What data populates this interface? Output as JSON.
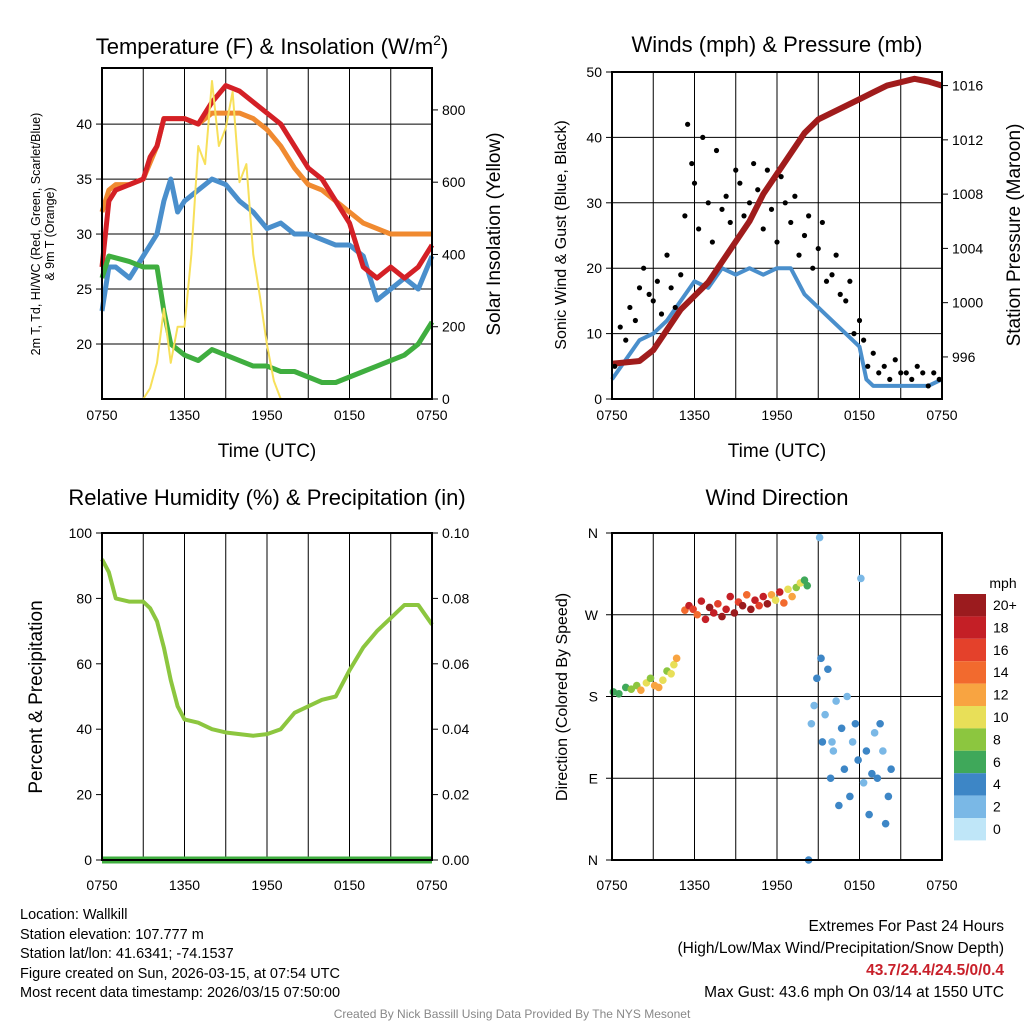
{
  "chart_data": [
    {
      "type": "line",
      "title": "Temperature (F) & Insolation (W/m2)",
      "title_main": "Temperature (F) & Insolation (W/m",
      "title_sup": "2",
      "title_end": ")",
      "xlabel": "Time (UTC)",
      "ylabel_line1": "2m T, Td, HI/WC (Red, Green, Scarlet/Blue)",
      "ylabel_line2": "& 9m T (Orange)",
      "ylabel_right": "Solar Insolation (Yellow)",
      "xticks": [
        "0750",
        "1350",
        "1950",
        "0150",
        "0750"
      ],
      "yticks": [
        20,
        25,
        30,
        35,
        40
      ],
      "ylim": [
        15,
        45.1
      ],
      "yticks_right": [
        0,
        200,
        400,
        600,
        800
      ],
      "ylim_right": [
        0,
        916
      ],
      "series": [
        {
          "name": "9m T",
          "color": "#f08a30",
          "axis": "left",
          "x": [
            0,
            0.5,
            1,
            2,
            3,
            4,
            4.5,
            6,
            7,
            8,
            9,
            10,
            11,
            12,
            13,
            14,
            15,
            16,
            17,
            18,
            19,
            20,
            21,
            22,
            23,
            24
          ],
          "y": [
            32,
            34,
            34.5,
            34.5,
            35,
            38,
            40.5,
            40.5,
            40,
            41,
            41,
            41,
            40.5,
            39.5,
            38,
            36,
            34.5,
            34,
            33,
            32,
            31,
            30.5,
            30,
            30,
            30,
            30
          ]
        },
        {
          "name": "HI/WC",
          "color": "#4a8fcc",
          "axis": "left",
          "x": [
            0,
            0.5,
            1,
            2,
            3,
            4,
            4.5,
            5,
            5.5,
            6,
            7,
            8,
            9,
            10,
            11,
            12,
            13,
            14,
            15,
            16,
            17,
            18,
            19,
            20,
            21,
            22,
            23,
            24
          ],
          "y": [
            23,
            27,
            27,
            26,
            28,
            30,
            33,
            35,
            32,
            33,
            34,
            35,
            34.5,
            33,
            32,
            30.5,
            31,
            30,
            30,
            29.5,
            29,
            29,
            28,
            24,
            25,
            26,
            25,
            28
          ]
        },
        {
          "name": "2m T",
          "color": "#d42026",
          "axis": "left",
          "x": [
            0,
            0.5,
            1,
            2,
            3,
            3.5,
            4,
            4.5,
            6,
            7,
            8,
            9,
            10,
            11,
            12,
            13,
            14,
            15,
            16,
            17,
            18,
            19,
            20,
            21,
            22,
            23,
            24
          ],
          "y": [
            27,
            33,
            34,
            34.5,
            35,
            37,
            38,
            40.5,
            40.5,
            40,
            42,
            43.5,
            43,
            42,
            41,
            40,
            38,
            36,
            35,
            33,
            31,
            27,
            26,
            27,
            26,
            27,
            29
          ]
        },
        {
          "name": "Td",
          "color": "#3fae3f",
          "axis": "left",
          "x": [
            0,
            0.5,
            2,
            3,
            4,
            4.5,
            5,
            6,
            7,
            8,
            9,
            10,
            11,
            12,
            13,
            14,
            15,
            16,
            17,
            18,
            19,
            20,
            21,
            22,
            23,
            24
          ],
          "y": [
            26,
            28,
            27.5,
            27,
            27,
            23,
            20,
            19,
            18.5,
            19.5,
            19,
            18.5,
            18,
            18,
            17.5,
            17.5,
            17,
            16.5,
            16.5,
            17,
            17.5,
            18,
            18.5,
            19,
            20,
            22
          ]
        },
        {
          "name": "Insolation",
          "color": "#f7e05a",
          "axis": "right",
          "thin": true,
          "x": [
            0,
            3,
            3.5,
            4,
            4.5,
            5,
            5.5,
            6,
            6.5,
            7,
            7.5,
            8,
            8.5,
            9,
            9.5,
            10,
            10.5,
            11,
            11.5,
            12,
            12.5,
            13,
            24
          ],
          "y": [
            0,
            0,
            30,
            100,
            250,
            100,
            200,
            200,
            400,
            700,
            650,
            880,
            700,
            750,
            850,
            600,
            650,
            400,
            280,
            150,
            50,
            0,
            0
          ]
        }
      ]
    },
    {
      "type": "line",
      "title": "Winds (mph) & Pressure (mb)",
      "xlabel": "Time (UTC)",
      "ylabel": "Sonic Wind & Gust (Blue, Black)",
      "ylabel_right": "Station Pressure (Maroon)",
      "xticks": [
        "0750",
        "1350",
        "1950",
        "0150",
        "0750"
      ],
      "yticks": [
        0,
        10,
        20,
        30,
        40,
        50
      ],
      "ylim": [
        0,
        50
      ],
      "yticks_right": [
        996,
        1000,
        1004,
        1008,
        1012,
        1016
      ],
      "ylim_right": [
        992.9,
        1017
      ],
      "series": [
        {
          "name": "Sonic Wind",
          "color": "#4a8fcc",
          "axis": "left",
          "x": [
            0,
            1,
            2,
            3,
            4,
            5,
            6,
            7,
            8,
            9,
            10,
            11,
            12,
            13,
            14,
            15,
            16,
            17,
            18,
            18.5,
            19,
            20,
            21,
            22,
            23,
            24
          ],
          "y": [
            3,
            6,
            9,
            10,
            12,
            15,
            18,
            17,
            20,
            19,
            20,
            19,
            20,
            20,
            16,
            14,
            12,
            10,
            8,
            3,
            2,
            2,
            2,
            2,
            2,
            3
          ]
        },
        {
          "name": "Pressure",
          "color": "#a01c1c",
          "axis": "right",
          "x": [
            0,
            2,
            3,
            4,
            5,
            6,
            7,
            8,
            9,
            10,
            11,
            12,
            13,
            14,
            15,
            16,
            17,
            18,
            19,
            20,
            22,
            23,
            24
          ],
          "y": [
            995.5,
            995.7,
            996.5,
            998,
            999.5,
            1000.5,
            1001.5,
            1003,
            1004.5,
            1006,
            1008,
            1009.5,
            1011,
            1012.5,
            1013.5,
            1014,
            1014.5,
            1015,
            1015.5,
            1016,
            1016.5,
            1016.3,
            1016
          ]
        },
        {
          "name": "Gust",
          "color": "#000000",
          "axis": "left",
          "scatter": true,
          "x": [
            0.2,
            0.6,
            1,
            1.3,
            1.7,
            2,
            2.3,
            2.7,
            3,
            3.3,
            3.6,
            4,
            4.3,
            4.6,
            5,
            5.3,
            5.5,
            5.8,
            6,
            6.3,
            6.6,
            7,
            7.3,
            7.6,
            8,
            8.3,
            8.6,
            9,
            9.3,
            9.6,
            10,
            10.3,
            10.6,
            11,
            11.3,
            11.6,
            12,
            12.3,
            12.6,
            13,
            13.3,
            13.6,
            14,
            14.3,
            14.6,
            15,
            15.3,
            15.6,
            16,
            16.3,
            16.6,
            17,
            17.3,
            17.6,
            18,
            18.3,
            18.6,
            19,
            19.4,
            19.8,
            20.2,
            20.6,
            21,
            21.4,
            21.8,
            22.2,
            22.6,
            23,
            23.4,
            23.8
          ],
          "y": [
            5,
            11,
            9,
            14,
            12,
            17,
            20,
            16,
            15,
            18,
            13,
            22,
            17,
            14,
            19,
            28,
            42,
            36,
            33,
            26,
            40,
            30,
            24,
            38,
            29,
            31,
            27,
            35,
            33,
            28,
            30,
            36,
            32,
            26,
            35,
            29,
            24,
            34,
            30,
            27,
            31,
            22,
            25,
            28,
            20,
            23,
            27,
            18,
            19,
            22,
            16,
            15,
            18,
            10,
            12,
            9,
            5,
            7,
            4,
            5,
            3,
            6,
            4,
            4,
            3,
            5,
            4,
            2,
            4,
            3
          ]
        }
      ]
    },
    {
      "type": "line",
      "title": "Relative Humidity (%) & Precipitation (in)",
      "ylabel": "Percent & Precipitation",
      "xticks": [
        "0750",
        "1350",
        "1950",
        "0150",
        "0750"
      ],
      "yticks": [
        0,
        20,
        40,
        60,
        80,
        100
      ],
      "ylim": [
        0,
        100
      ],
      "yticks_right": [
        "0.00",
        "0.02",
        "0.04",
        "0.06",
        "0.08",
        "0.10"
      ],
      "ylim_right": [
        0,
        0.1
      ],
      "series": [
        {
          "name": "RH",
          "color": "#8cc63f",
          "axis": "left",
          "x": [
            0,
            0.5,
            1,
            2,
            3,
            3.5,
            4,
            4.5,
            5,
            5.5,
            6,
            7,
            8,
            9,
            10,
            11,
            12,
            13,
            14,
            15,
            16,
            17,
            18,
            19,
            20,
            21,
            22,
            23,
            24
          ],
          "y": [
            92,
            88,
            80,
            79,
            79,
            77,
            73,
            65,
            55,
            47,
            43,
            42,
            40,
            39,
            38.5,
            38,
            38.5,
            40,
            45,
            47,
            49,
            50,
            58,
            65,
            70,
            74,
            78,
            78,
            72
          ]
        },
        {
          "name": "Precipitation",
          "color": "#3fae3f",
          "axis": "right",
          "x": [
            0,
            24
          ],
          "y": [
            0,
            0
          ]
        }
      ]
    },
    {
      "type": "scatter",
      "title": "Wind Direction",
      "ylabel": "Direction (Colored By Speed)",
      "xticks": [
        "0750",
        "1350",
        "1950",
        "0150",
        "0750"
      ],
      "yticks": [
        "N",
        "E",
        "S",
        "W",
        "N"
      ],
      "ylim": [
        0,
        360
      ],
      "colorbar": {
        "title": "mph",
        "labels": [
          "20+",
          "18",
          "16",
          "14",
          "12",
          "10",
          "8",
          "6",
          "4",
          "2",
          "0"
        ],
        "colors": [
          "#9b1b1e",
          "#c41f26",
          "#e4412b",
          "#f26a2e",
          "#f8a441",
          "#e8df58",
          "#8cc63f",
          "#3fa85a",
          "#3d86c6",
          "#7ab8e6",
          "#bfe6f8"
        ]
      },
      "points": [
        [
          0.1,
          185,
          6
        ],
        [
          0.5,
          183,
          5
        ],
        [
          1,
          190,
          6
        ],
        [
          1.4,
          188,
          7
        ],
        [
          1.8,
          192,
          8
        ],
        [
          2.1,
          187,
          12
        ],
        [
          2.5,
          195,
          10
        ],
        [
          2.8,
          200,
          8
        ],
        [
          3.1,
          192,
          11
        ],
        [
          3.4,
          190,
          12
        ],
        [
          3.7,
          198,
          9
        ],
        [
          4,
          208,
          7
        ],
        [
          4.3,
          205,
          10
        ],
        [
          4.5,
          215,
          9
        ],
        [
          4.7,
          222,
          12
        ],
        [
          5.3,
          275,
          13
        ],
        [
          5.6,
          280,
          18
        ],
        [
          5.9,
          276,
          16
        ],
        [
          6.2,
          270,
          14
        ],
        [
          6.5,
          285,
          17
        ],
        [
          6.8,
          265,
          18
        ],
        [
          7.1,
          278,
          20
        ],
        [
          7.4,
          272,
          18
        ],
        [
          7.7,
          282,
          16
        ],
        [
          8,
          268,
          20
        ],
        [
          8.3,
          276,
          18
        ],
        [
          8.6,
          290,
          17
        ],
        [
          8.9,
          272,
          20
        ],
        [
          9.2,
          284,
          16
        ],
        [
          9.5,
          280,
          19
        ],
        [
          9.8,
          292,
          14
        ],
        [
          10.1,
          276,
          20
        ],
        [
          10.4,
          286,
          18
        ],
        [
          10.7,
          280,
          16
        ],
        [
          11,
          290,
          17
        ],
        [
          11.3,
          282,
          20
        ],
        [
          11.6,
          292,
          12
        ],
        [
          11.9,
          286,
          10
        ],
        [
          12.2,
          295,
          18
        ],
        [
          12.5,
          283,
          14
        ],
        [
          12.8,
          298,
          9
        ],
        [
          13.1,
          290,
          11
        ],
        [
          13.4,
          300,
          8
        ],
        [
          13.7,
          305,
          10
        ],
        [
          14,
          308,
          6
        ],
        [
          14.2,
          302,
          5
        ],
        [
          14.5,
          150,
          2
        ],
        [
          14.7,
          170,
          1
        ],
        [
          14.9,
          200,
          3
        ],
        [
          15.1,
          355,
          1
        ],
        [
          15.3,
          130,
          3
        ],
        [
          15.5,
          160,
          2
        ],
        [
          15.7,
          210,
          4
        ],
        [
          15.9,
          90,
          3
        ],
        [
          16.1,
          120,
          2
        ],
        [
          16.3,
          175,
          1
        ],
        [
          16.5,
          60,
          4
        ],
        [
          16.7,
          145,
          3
        ],
        [
          16.9,
          100,
          4
        ],
        [
          17.1,
          180,
          2
        ],
        [
          17.3,
          70,
          3
        ],
        [
          17.5,
          130,
          2
        ],
        [
          17.7,
          150,
          4
        ],
        [
          17.9,
          110,
          3
        ],
        [
          18.1,
          310,
          2
        ],
        [
          18.3,
          85,
          2
        ],
        [
          18.5,
          120,
          4
        ],
        [
          18.7,
          50,
          3
        ],
        [
          18.9,
          95,
          4
        ],
        [
          19.1,
          140,
          2
        ],
        [
          19.3,
          90,
          4
        ],
        [
          19.5,
          150,
          3
        ],
        [
          19.7,
          120,
          2
        ],
        [
          19.9,
          40,
          4
        ],
        [
          20.1,
          70,
          4
        ],
        [
          20.3,
          100,
          3
        ],
        [
          14.3,
          0,
          4
        ],
        [
          15.2,
          222,
          4
        ],
        [
          16,
          130,
          2
        ]
      ]
    }
  ],
  "info": {
    "location": "Location: Wallkill",
    "elevation": "Station elevation: 107.777 m",
    "latlon": "Station lat/lon: 41.6341; -74.1537",
    "created": "Figure created on Sun, 2026-03-15, at 07:54 UTC",
    "recent": "Most recent data timestamp: 2026/03/15 07:50:00"
  },
  "extremes": {
    "title": "Extremes For Past 24 Hours",
    "subtitle": "(High/Low/Max Wind/Precipitation/Snow Depth)",
    "values": "43.7/24.4/24.5/0/0.4",
    "gust": "Max Gust: 43.6 mph On 03/14 at 1550 UTC"
  },
  "credit": "Created By Nick Bassill Using Data Provided By The NYS Mesonet"
}
